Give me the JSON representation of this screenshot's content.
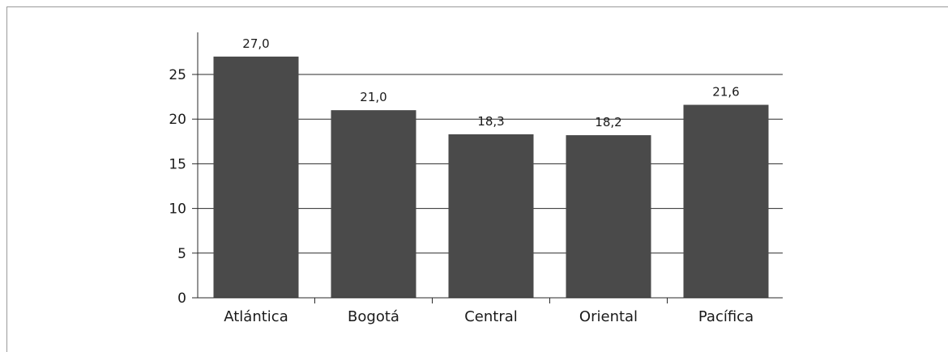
{
  "chart_data": {
    "type": "bar",
    "categories": [
      "Atlántica",
      "Bogotá",
      "Central",
      "Oriental",
      "Pacífica"
    ],
    "values": [
      27.0,
      21.0,
      18.3,
      18.2,
      21.6
    ],
    "data_labels": [
      "27,0",
      "21,0",
      "18,3",
      "18,2",
      "21,6"
    ],
    "title": "",
    "xlabel": "",
    "ylabel": "",
    "ylim": [
      0,
      25
    ],
    "yticks": [
      0,
      5,
      10,
      15,
      20,
      25
    ],
    "grid": "horizontal",
    "legend": "none",
    "colors": {
      "bar": "#4a4a4a",
      "grid": "#2a2a2a",
      "axis": "#2a2a2a",
      "frame": "#9a9a9a"
    }
  }
}
